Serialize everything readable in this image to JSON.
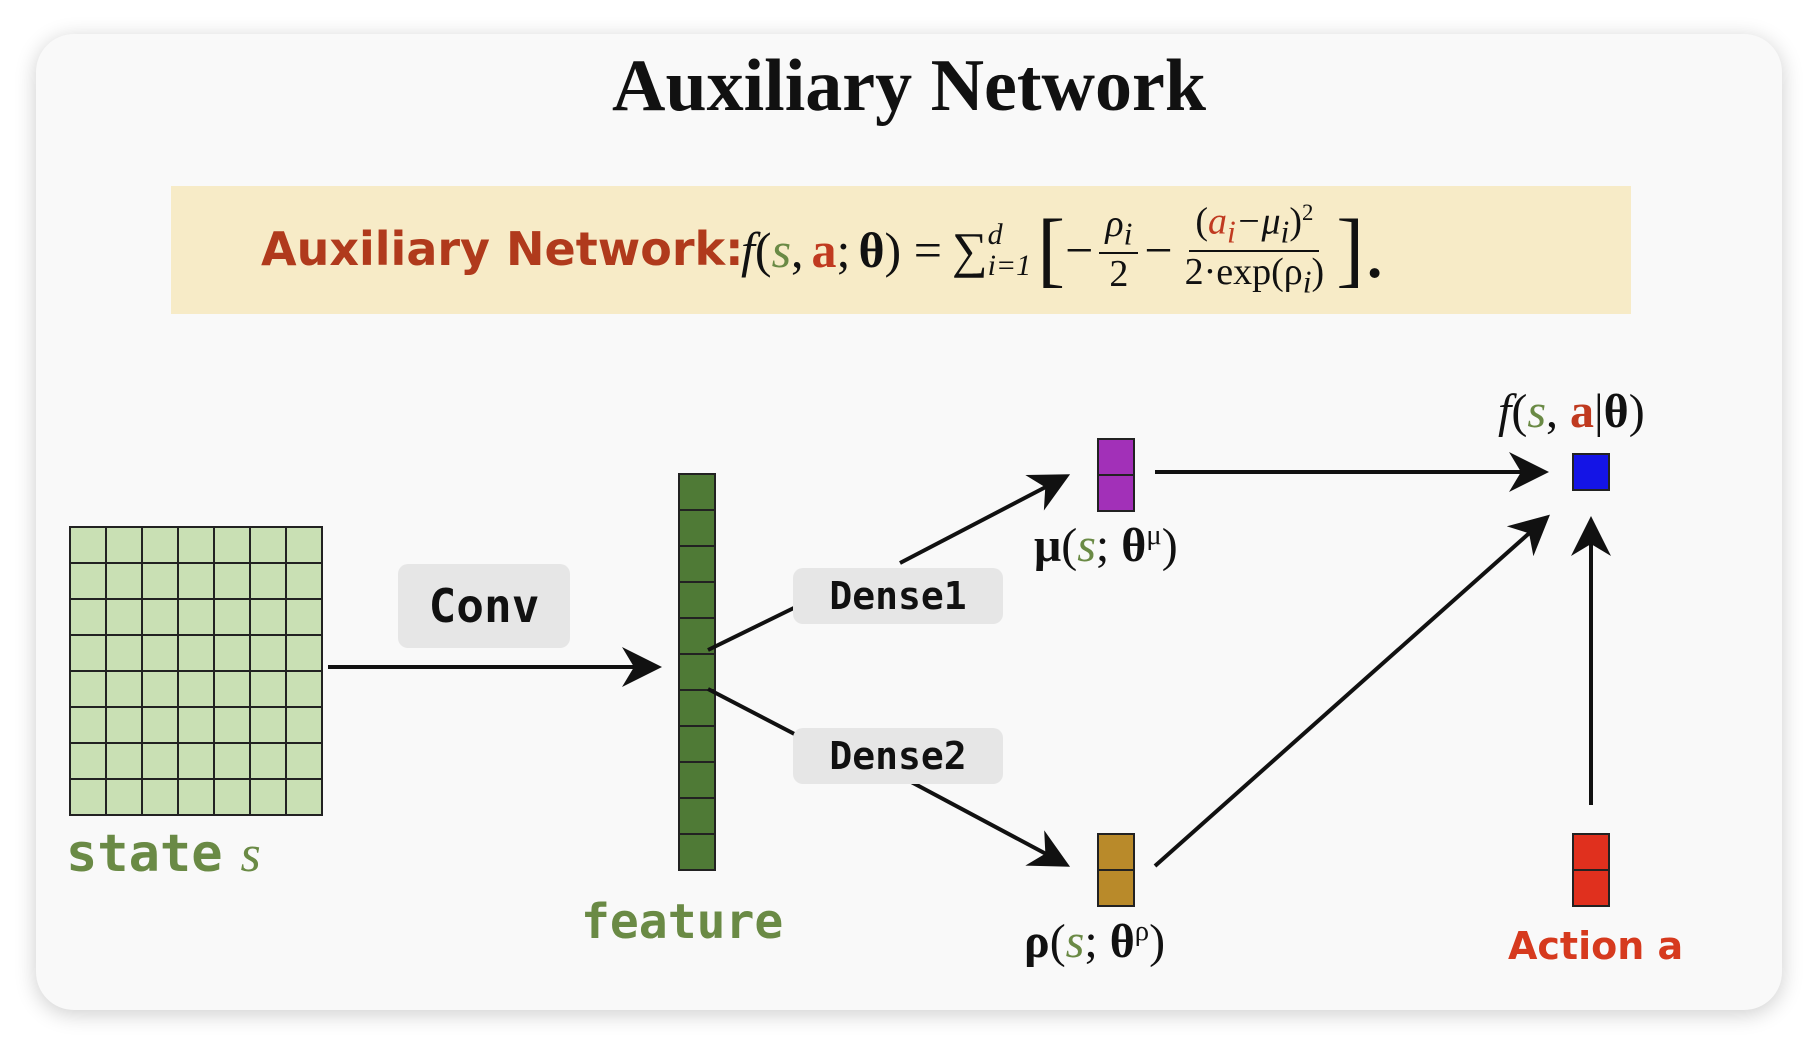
{
  "title": "Auxiliary Network",
  "formula": {
    "label": "Auxiliary Network:",
    "f": "f",
    "open_paren": "(",
    "s": "s",
    "comma": ",",
    "a": "a",
    "semicolon": ";",
    "theta": "θ",
    "close_paren_eq": ") =",
    "sum": "∑",
    "sum_upper": "d",
    "sum_lower": "i=1",
    "left_bracket": "[",
    "minus1": "−",
    "frac1_num": "ρ",
    "frac1_num_sub": "i",
    "frac1_den": "2",
    "minus2": "−",
    "frac2_num_open": "(",
    "frac2_num_a": "a",
    "frac2_num_a_sub": "i",
    "frac2_num_mid": "−μ",
    "frac2_num_mu_sub": "i",
    "frac2_num_close": ")",
    "frac2_num_sup": "2",
    "frac2_den": "2·exp(ρ",
    "frac2_den_sub": "i",
    "frac2_den_close": ")",
    "right_bracket": "].",
    "colors": {
      "label": "#b03a1c",
      "s": "#6a8a45",
      "a": "#c03a20"
    }
  },
  "diagram": {
    "conv_label": "Conv",
    "dense1_label": "Dense1",
    "dense2_label": "Dense2",
    "state_label": "state",
    "state_var": "s",
    "feature_label": "feature",
    "mu_label": {
      "mu": "μ",
      "open": "(",
      "s": "s",
      "sep": "; ",
      "theta": "θ",
      "sup": "μ",
      "close": ")"
    },
    "rho_label": {
      "rho": "ρ",
      "open": "(",
      "s": "s",
      "sep": "; ",
      "theta": "θ",
      "sup": "ρ",
      "close": ")"
    },
    "output_label": {
      "f": "f",
      "open": "(",
      "s": "s",
      "comma": ", ",
      "a": "a",
      "bar": "|",
      "theta": "θ",
      "close": ")"
    },
    "action_label": "Action a",
    "colors": {
      "state_grid_fill": "#c9e0b4",
      "feature_fill": "#4f7a36",
      "mu_fill": "#a230b8",
      "rho_fill": "#b98a2a",
      "output_fill": "#1414e6",
      "action_fill": "#e0301e",
      "green_text": "#6a8a45",
      "action_text": "#d63a1e"
    },
    "state_grid": {
      "rows": 8,
      "cols": 7
    },
    "feature_cells": 11,
    "mu_cells": 2,
    "rho_cells": 2,
    "action_cells": 2,
    "output_cells": 1
  }
}
